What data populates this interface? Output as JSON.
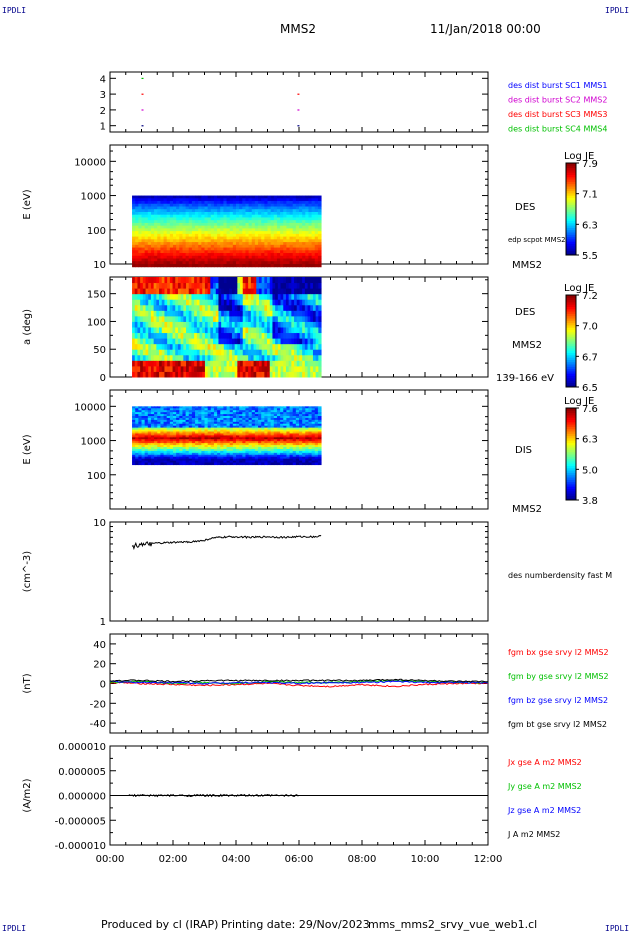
{
  "corners": {
    "tl": "IPDLI",
    "tr": "IPDLI",
    "bl": "IPDLI",
    "br": "IPDLI"
  },
  "header": {
    "title": "MMS2",
    "date": "11/Jan/2018 00:00"
  },
  "footer": {
    "produced": "Produced by cl (IRAP)",
    "printing": "Printing date: 29/Nov/2023",
    "file": "mms_mms2_srvy_vue_web1.cl"
  },
  "xaxis": {
    "range": [
      0,
      12
    ],
    "ticks": [
      "00:00",
      "02:00",
      "04:00",
      "06:00",
      "08:00",
      "10:00",
      "12:00"
    ]
  },
  "colors": {
    "jet": [
      "#00008f",
      "#0000ff",
      "#007fff",
      "#00ffff",
      "#7fff7f",
      "#ffff00",
      "#ff7f00",
      "#ff0000",
      "#8f0000"
    ]
  },
  "chart_data": [
    {
      "type": "scatter",
      "panel": "availability",
      "y_ticks": [
        "1",
        "2",
        "3",
        "4"
      ],
      "ylim": [
        0.6,
        4.4
      ],
      "legend": [
        {
          "label": "des dist burst SC1 MMS1",
          "color": "#0000ff"
        },
        {
          "label": "des dist burst SC2 MMS2",
          "color": "#d000d0"
        },
        {
          "label": "des dist burst SC3 MMS3",
          "color": "#ff0000"
        },
        {
          "label": "des dist burst SC4 MMS4",
          "color": "#00c000"
        }
      ],
      "points": [
        {
          "x": 1.0,
          "y": 4,
          "color": "#00c000"
        },
        {
          "x": 1.0,
          "y": 3,
          "color": "#ff0000"
        },
        {
          "x": 1.0,
          "y": 2,
          "color": "#d000d0"
        },
        {
          "x": 1.0,
          "y": 1,
          "color": "#000080"
        },
        {
          "x": 5.95,
          "y": 3,
          "color": "#ff0000"
        },
        {
          "x": 5.95,
          "y": 2,
          "color": "#d000d0"
        },
        {
          "x": 5.95,
          "y": 1,
          "color": "#000080"
        }
      ]
    },
    {
      "type": "heatmap",
      "panel": "des-energy",
      "ylabel": "E (eV)",
      "scale": "log",
      "ylim": [
        10,
        30000
      ],
      "y_ticks": [
        "10",
        "100",
        "1000",
        "10000"
      ],
      "x_range": [
        0.7,
        6.7
      ],
      "data_range": [
        10,
        1000
      ],
      "colorbar": {
        "title": "Log JE",
        "ticks": [
          "5.5",
          "6.3",
          "7.1",
          "7.9"
        ]
      },
      "labels": [
        "DES",
        "edp scpot MMS2",
        "MMS2"
      ]
    },
    {
      "type": "heatmap",
      "panel": "des-pitch",
      "ylabel": "a (deg)",
      "ylim": [
        0,
        180
      ],
      "y_ticks": [
        "0",
        "50",
        "100",
        "150"
      ],
      "x_range": [
        0.7,
        6.7
      ],
      "colorbar": {
        "title": "Log JE",
        "ticks": [
          "6.5",
          "6.7",
          "7.0",
          "7.2"
        ]
      },
      "labels": [
        "DES",
        "MMS2",
        "139-166 eV"
      ]
    },
    {
      "type": "heatmap",
      "panel": "dis-energy",
      "ylabel": "E (eV)",
      "scale": "log",
      "ylim": [
        10,
        30000
      ],
      "y_ticks": [
        "100",
        "1000",
        "10000"
      ],
      "x_range": [
        0.7,
        6.7
      ],
      "data_range": [
        200,
        10000
      ],
      "colorbar": {
        "title": "Log JE",
        "ticks": [
          "3.8",
          "5.0",
          "6.3",
          "7.6"
        ]
      },
      "labels": [
        "DIS",
        "MMS2"
      ]
    },
    {
      "type": "line",
      "panel": "density",
      "ylabel": "(cm^-3)",
      "scale": "log",
      "ylim": [
        1,
        10
      ],
      "y_ticks": [
        "1",
        "10"
      ],
      "series": [
        {
          "name": "des numberdensity fast M",
          "color": "#000000",
          "x": [
            0.7,
            0.9,
            1.0,
            1.1,
            1.2,
            1.5,
            2.0,
            2.5,
            3.0,
            3.1,
            3.3,
            3.5,
            4.0,
            4.5,
            5.0,
            5.5,
            6.0,
            6.5,
            6.7
          ],
          "y": [
            5.6,
            5.9,
            6.1,
            5.7,
            6.0,
            6.1,
            6.2,
            6.3,
            6.5,
            6.7,
            6.9,
            7.0,
            7.1,
            7.0,
            7.1,
            7.0,
            7.1,
            7.1,
            7.2
          ]
        }
      ]
    },
    {
      "type": "line",
      "panel": "fgm",
      "ylabel": "(nT)",
      "ylim": [
        -50,
        50
      ],
      "y_ticks": [
        "-40",
        "-20",
        "0",
        "20",
        "40"
      ],
      "series": [
        {
          "name": "fgm bx gse srvy l2 MMS2",
          "color": "#ff0000",
          "x": [
            0,
            1,
            2,
            3,
            4,
            5,
            6,
            7,
            8,
            9,
            10,
            11,
            12
          ],
          "y": [
            1,
            0,
            -1,
            -2,
            -1,
            0,
            -2,
            -3,
            -1,
            -3,
            -1,
            0,
            0
          ]
        },
        {
          "name": "fgm by gse srvy l2 MMS2",
          "color": "#00c000",
          "x": [
            0,
            1,
            2,
            3,
            4,
            5,
            6,
            7,
            8,
            9,
            10,
            11,
            12
          ],
          "y": [
            1,
            2,
            0,
            1,
            0,
            2,
            1,
            1,
            2,
            3,
            2,
            1,
            1
          ]
        },
        {
          "name": "fgm bz gse srvy l2 MMS2",
          "color": "#0000ff",
          "x": [
            0,
            1,
            2,
            3,
            4,
            5,
            6,
            7,
            8,
            9,
            10,
            11,
            12
          ],
          "y": [
            2,
            1,
            1,
            0,
            1,
            1,
            0,
            1,
            1,
            2,
            1,
            1,
            1
          ]
        },
        {
          "name": "fgm bt gse srvy l2 MMS2",
          "color": "#000000",
          "x": [
            0,
            1,
            2,
            3,
            4,
            5,
            6,
            7,
            8,
            9,
            10,
            11,
            12
          ],
          "y": [
            3,
            3,
            2,
            3,
            3,
            3,
            3,
            3,
            3,
            4,
            3,
            2,
            2
          ]
        }
      ]
    },
    {
      "type": "line",
      "panel": "current",
      "ylabel": "(A/m2)",
      "ylim": [
        -1e-05,
        1e-05
      ],
      "y_ticks": [
        "-0.000010",
        "-0.000005",
        "0.000000",
        "0.000005",
        "0.000010"
      ],
      "series": [
        {
          "name": "Jx gse A m2 MMS2",
          "color": "#ff0000"
        },
        {
          "name": "Jy gse A m2 MMS2",
          "color": "#00c000"
        },
        {
          "name": "Jz gse A m2 MMS2",
          "color": "#0000ff"
        },
        {
          "name": "J A m2 MMS2",
          "color": "#000000",
          "x": [
            0,
            2,
            4,
            6,
            8,
            10,
            12
          ],
          "y": [
            0,
            0,
            0,
            0,
            0,
            0,
            0
          ]
        }
      ]
    }
  ]
}
